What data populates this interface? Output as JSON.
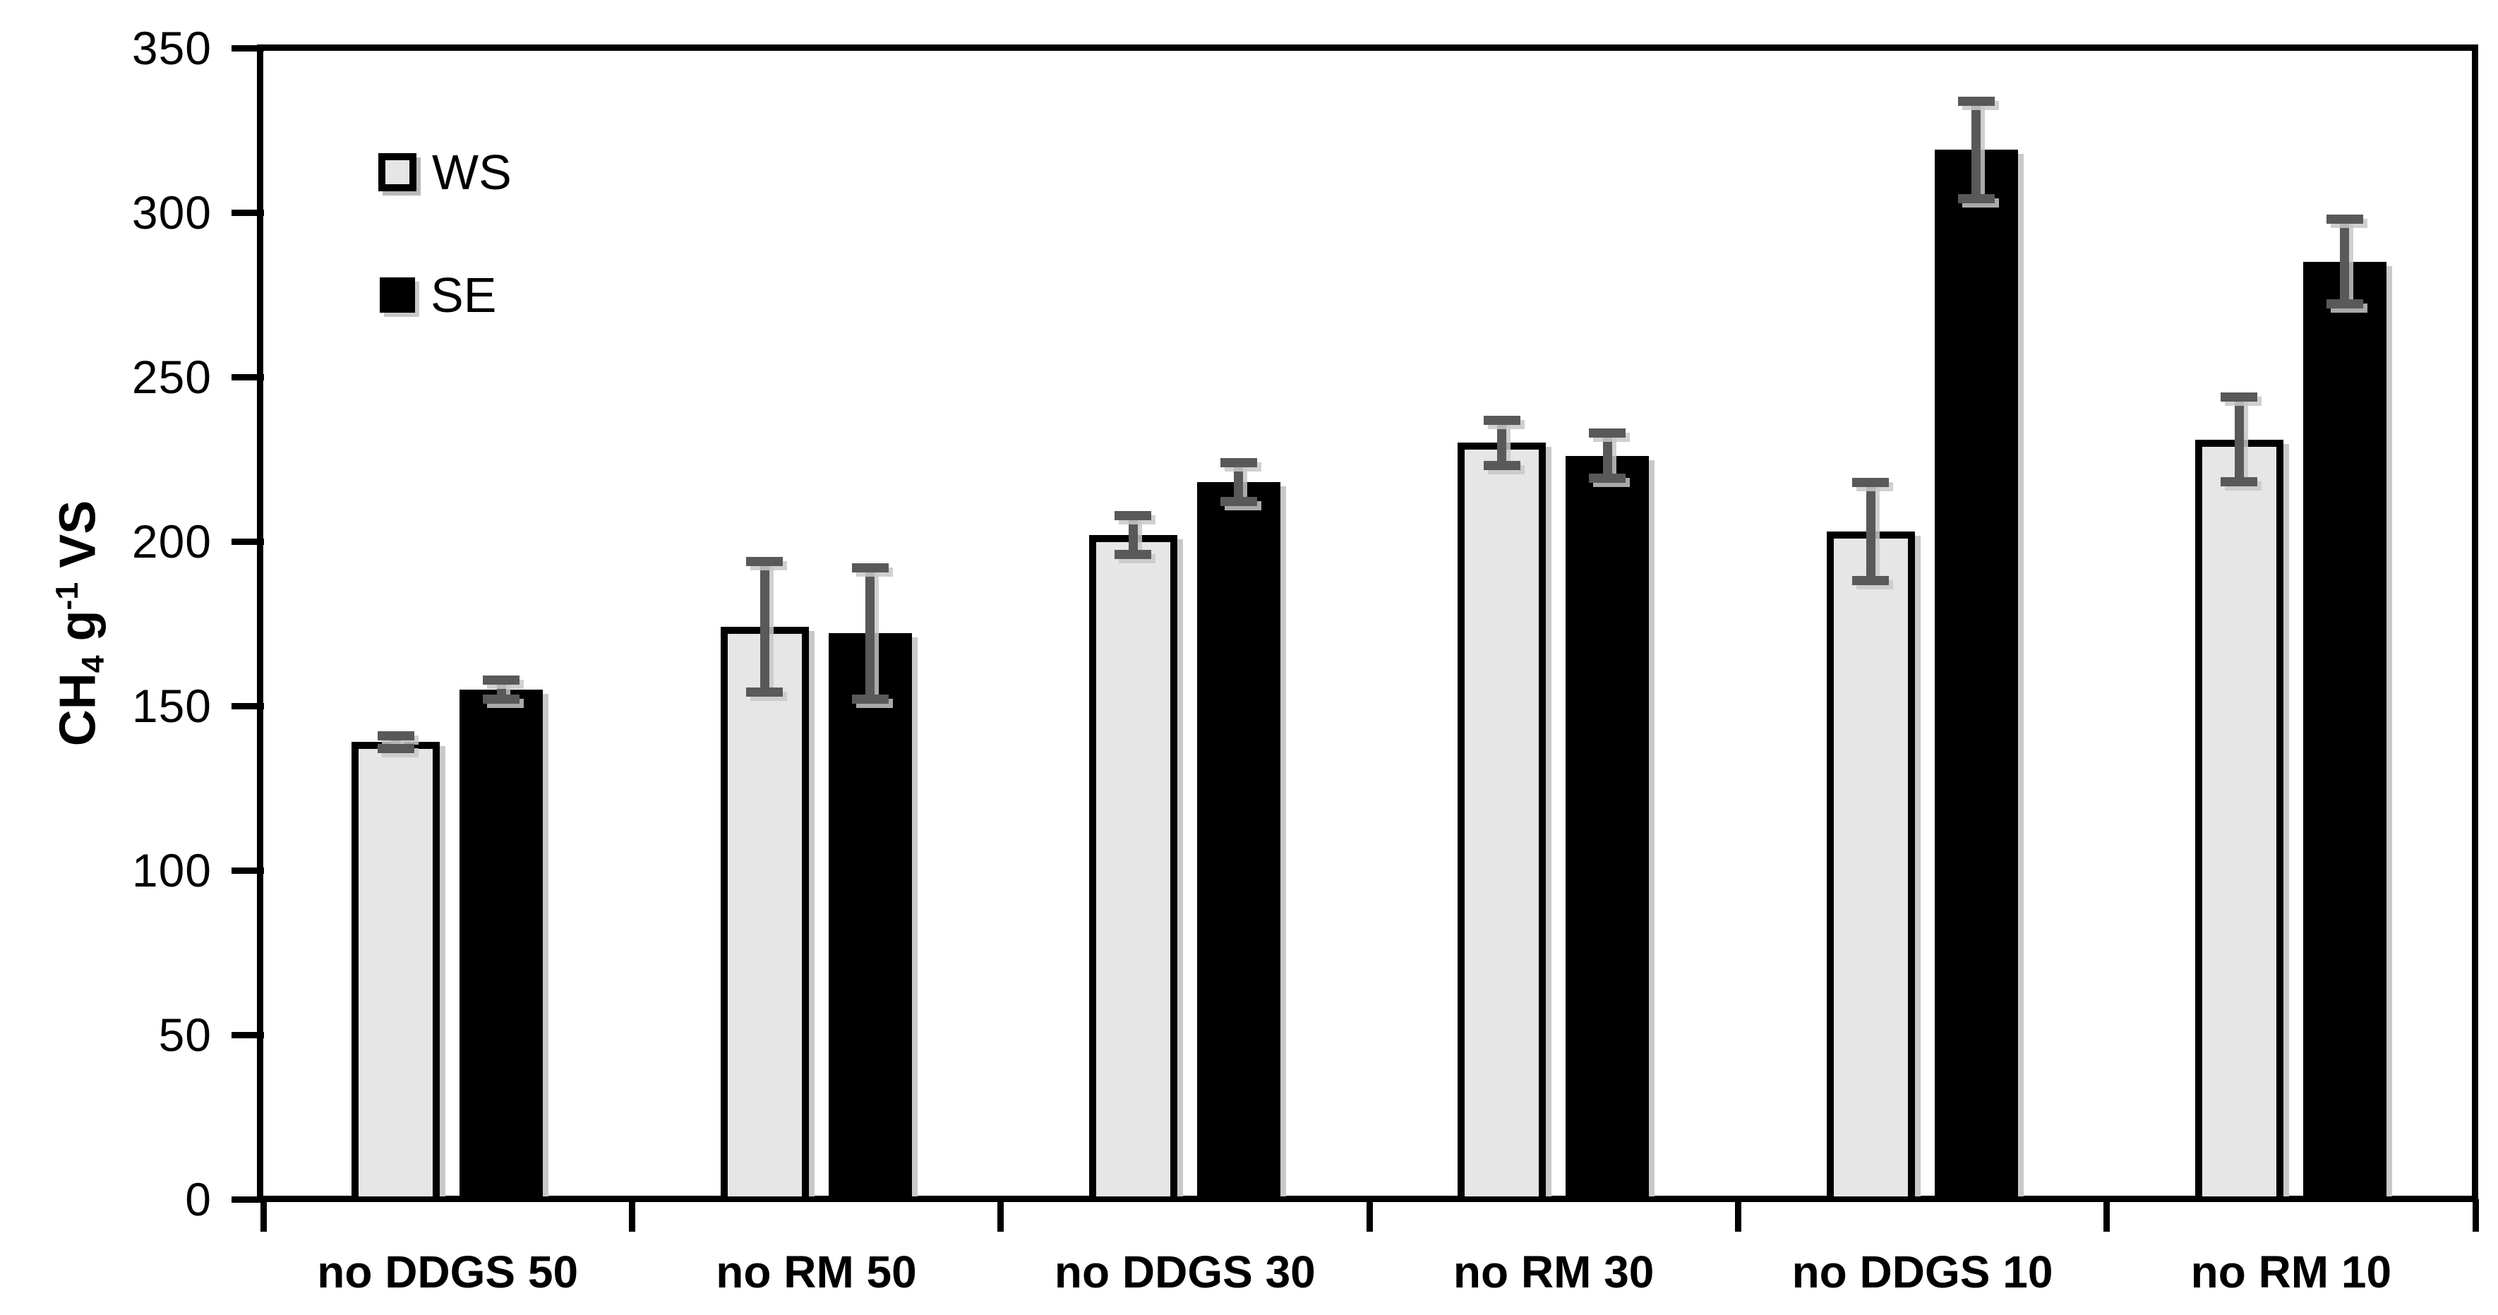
{
  "figure": {
    "background": "#ffffff"
  },
  "y_axis": {
    "title_plain": "CH4 g-1 VS",
    "title": {
      "pre": "CH",
      "sub": "4",
      "mid": " g",
      "sup": "-1",
      "post": " VS"
    }
  },
  "chart_data": {
    "type": "bar",
    "title": "",
    "xlabel": "",
    "ylabel": "CH4 g-1 VS",
    "categories": [
      "no DDGS 50",
      "no RM 50",
      "no DDGS 30",
      "no RM 30",
      "no DDGS 10",
      "no RM 10"
    ],
    "series": [
      {
        "name": "WS",
        "fill": "#e6e6e6",
        "border": "#000000",
        "values": [
          139,
          174,
          202,
          230,
          203,
          231
        ],
        "errors": [
          2,
          20,
          6,
          7,
          15,
          13
        ]
      },
      {
        "name": "SE",
        "fill": "#000000",
        "border": "#000000",
        "values": [
          155,
          172,
          218,
          226,
          319,
          285
        ],
        "errors": [
          3,
          20,
          6,
          7,
          15,
          13
        ]
      }
    ],
    "ylim": [
      0,
      350
    ],
    "yticks": [
      0,
      50,
      100,
      150,
      200,
      250,
      300,
      350
    ],
    "grid": false,
    "legend_position": "upper-left-inside",
    "error_bar_color": "#595959",
    "shadow_color": "#c9c9c9",
    "axis_color": "#000000"
  }
}
